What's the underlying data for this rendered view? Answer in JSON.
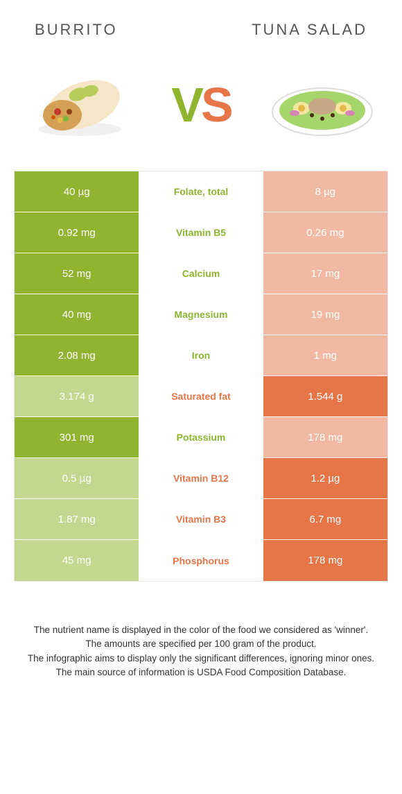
{
  "header": {
    "left_title": "Burrito",
    "right_title": "Tuna salad"
  },
  "vs": {
    "v": "V",
    "s": "S"
  },
  "colors": {
    "green": "#8fb430",
    "green_dim": "#c4d78e",
    "orange": "#e67648",
    "orange_dim": "#f2b9a2",
    "text": "#333333"
  },
  "rows": [
    {
      "left": "40 µg",
      "label": "Folate, total",
      "right": "8 µg",
      "winner": "left"
    },
    {
      "left": "0.92 mg",
      "label": "Vitamin B5",
      "right": "0.26 mg",
      "winner": "left"
    },
    {
      "left": "52 mg",
      "label": "Calcium",
      "right": "17 mg",
      "winner": "left"
    },
    {
      "left": "40 mg",
      "label": "Magnesium",
      "right": "19 mg",
      "winner": "left"
    },
    {
      "left": "2.08 mg",
      "label": "Iron",
      "right": "1 mg",
      "winner": "left"
    },
    {
      "left": "3.174 g",
      "label": "Saturated fat",
      "right": "1.544 g",
      "winner": "right"
    },
    {
      "left": "301 mg",
      "label": "Potassium",
      "right": "178 mg",
      "winner": "left"
    },
    {
      "left": "0.5 µg",
      "label": "Vitamin B12",
      "right": "1.2 µg",
      "winner": "right"
    },
    {
      "left": "1.87 mg",
      "label": "Vitamin B3",
      "right": "6.7 mg",
      "winner": "right"
    },
    {
      "left": "45 mg",
      "label": "Phosphorus",
      "right": "178 mg",
      "winner": "right"
    }
  ],
  "footnote": {
    "line1": "The nutrient name is displayed in the color of the food we considered as 'winner'.",
    "line2": "The amounts are specified per 100 gram of the product.",
    "line3": "The infographic aims to display only the significant differences, ignoring minor ones.",
    "line4": "The main source of information is USDA Food Composition Database."
  }
}
